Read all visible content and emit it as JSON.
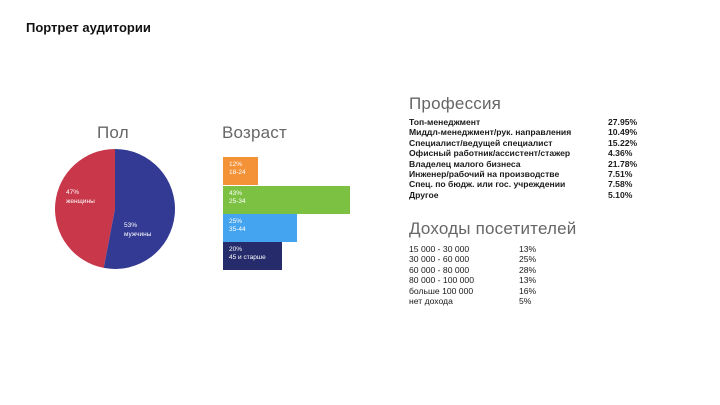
{
  "page": {
    "title": "Портрет аудитории"
  },
  "gender": {
    "title": "Пол",
    "colors": {
      "women": "#c8384a",
      "men": "#323a93"
    },
    "women": {
      "pct_label": "47%",
      "label": "женщины"
    },
    "men": {
      "pct_label": "53%",
      "label": "мужчины"
    }
  },
  "age": {
    "title": "Возраст",
    "bars": [
      {
        "pct": "12%",
        "range": "18-24",
        "color": "#f39237"
      },
      {
        "pct": "43%",
        "range": "25-34",
        "color": "#7dc143"
      },
      {
        "pct": "25%",
        "range": "35-44",
        "color": "#45a4ef"
      },
      {
        "pct": "20%",
        "range": "45 и старше",
        "color": "#252b6b"
      }
    ]
  },
  "profession": {
    "title": "Профессия",
    "rows": [
      {
        "label": "Топ-менеджмент",
        "value": "27.95%"
      },
      {
        "label": "Миддл-менеджмент/рук. направления",
        "value": "10.49%"
      },
      {
        "label": "Специалист/ведущей специалист",
        "value": "15.22%"
      },
      {
        "label": "Офисный работник/ассистент/стажер",
        "value": "4.36%"
      },
      {
        "label": "Владелец малого бизнеса",
        "value": "21.78%"
      },
      {
        "label": "Инженер/рабочий на производстве",
        "value": "7.51%"
      },
      {
        "label": "Спец. по бюдж. или гос. учреждении",
        "value": "7.58%"
      },
      {
        "label": "Другое",
        "value": "5.10%"
      }
    ]
  },
  "income": {
    "title": "Доходы посетителей",
    "rows": [
      {
        "label": "15 000 - 30 000",
        "value": "13%"
      },
      {
        "label": "30 000 - 60 000",
        "value": "25%"
      },
      {
        "label": "60 000 - 80 000",
        "value": "28%"
      },
      {
        "label": "80 000 - 100 000",
        "value": "13%"
      },
      {
        "label": "больше 100 000",
        "value": "16%"
      },
      {
        "label": "нет дохода",
        "value": "5%"
      }
    ]
  },
  "chart_data": [
    {
      "type": "pie",
      "title": "Пол",
      "categories": [
        "женщины",
        "мужчины"
      ],
      "values": [
        47,
        53
      ]
    },
    {
      "type": "bar",
      "title": "Возраст",
      "categories": [
        "18-24",
        "25-34",
        "35-44",
        "45 и старше"
      ],
      "values": [
        12,
        43,
        25,
        20
      ]
    },
    {
      "type": "table",
      "title": "Профессия",
      "categories": [
        "Топ-менеджмент",
        "Миддл-менеджмент/рук. направления",
        "Специалист/ведущей специалист",
        "Офисный работник/ассистент/стажер",
        "Владелец малого бизнеса",
        "Инженер/рабочий на производстве",
        "Спец. по бюдж. или гос. учреждении",
        "Другое"
      ],
      "values": [
        27.95,
        10.49,
        15.22,
        4.36,
        21.78,
        7.51,
        7.58,
        5.1
      ]
    },
    {
      "type": "table",
      "title": "Доходы посетителей",
      "categories": [
        "15 000 - 30 000",
        "30 000 - 60 000",
        "60 000 - 80 000",
        "80 000 - 100 000",
        "больше 100 000",
        "нет дохода"
      ],
      "values": [
        13,
        25,
        28,
        13,
        16,
        5
      ]
    }
  ]
}
